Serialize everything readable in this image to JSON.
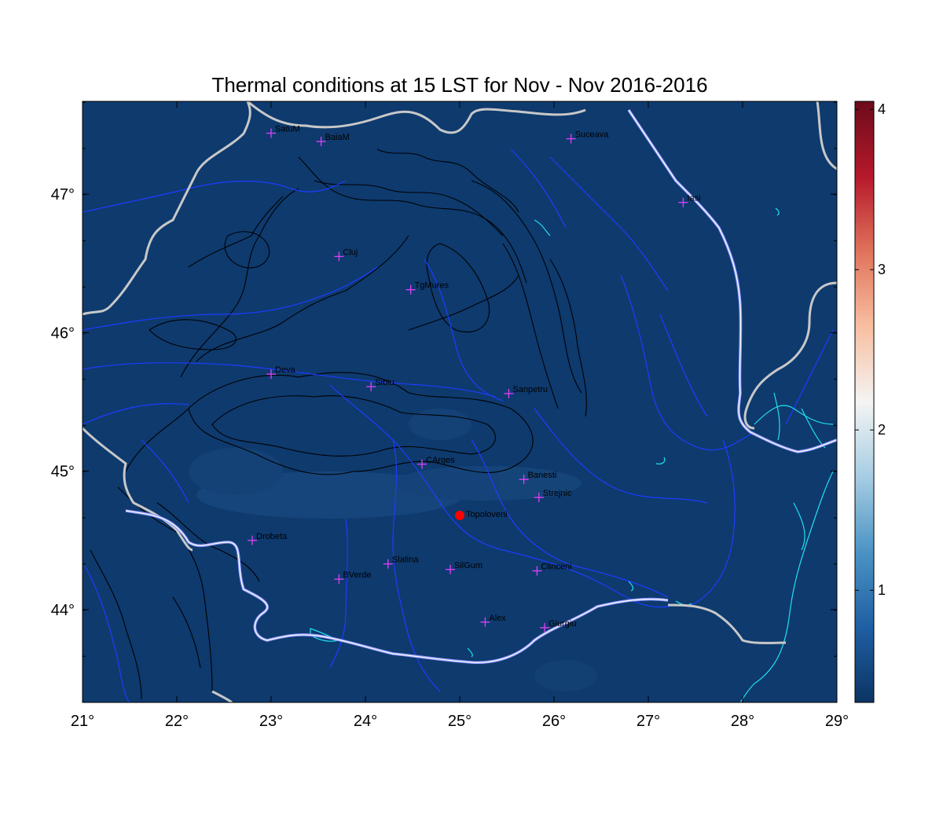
{
  "title": "Thermal conditions at 15 LST for Nov - Nov  2016-2016",
  "map": {
    "lon_range": [
      21,
      29
    ],
    "lat_range": [
      43.33,
      47.67
    ],
    "x_ticks": [
      21,
      22,
      23,
      24,
      25,
      26,
      27,
      28,
      29
    ],
    "y_ticks": [
      44,
      45,
      46,
      47
    ],
    "background_color": "#0e3a6e"
  },
  "colorbar": {
    "range": [
      0.3,
      4.05
    ],
    "ticks": [
      1,
      2,
      3,
      4
    ],
    "colors": [
      "#0b3463",
      "#1f5fa3",
      "#4b93c4",
      "#a6cde3",
      "#f4f4f4",
      "#f8bfa1",
      "#e0735b",
      "#b5192b",
      "#6c0b1b"
    ]
  },
  "stations": [
    {
      "name": "SatuM",
      "lon": 23.0,
      "lat": 47.44
    },
    {
      "name": "BaiaM",
      "lon": 23.53,
      "lat": 47.38
    },
    {
      "name": "Suceava",
      "lon": 26.18,
      "lat": 47.4
    },
    {
      "name": "Iasi",
      "lon": 27.37,
      "lat": 46.94
    },
    {
      "name": "Cluj",
      "lon": 23.72,
      "lat": 46.55
    },
    {
      "name": "TgMures",
      "lon": 24.48,
      "lat": 46.31
    },
    {
      "name": "Deva",
      "lon": 23.0,
      "lat": 45.7
    },
    {
      "name": "Sibiu",
      "lon": 24.06,
      "lat": 45.61
    },
    {
      "name": "Sanpetru",
      "lon": 25.52,
      "lat": 45.56
    },
    {
      "name": "CArges",
      "lon": 24.6,
      "lat": 45.05
    },
    {
      "name": "Banesti",
      "lon": 25.68,
      "lat": 44.94
    },
    {
      "name": "Strejnic",
      "lon": 25.84,
      "lat": 44.81
    },
    {
      "name": "Drobeta",
      "lon": 22.8,
      "lat": 44.5
    },
    {
      "name": "Slatina",
      "lon": 24.24,
      "lat": 44.33
    },
    {
      "name": "SilGum",
      "lon": 24.9,
      "lat": 44.29
    },
    {
      "name": "Clinceni",
      "lon": 25.82,
      "lat": 44.28
    },
    {
      "name": "BVerde",
      "lon": 23.72,
      "lat": 44.22
    },
    {
      "name": "Alex",
      "lon": 25.27,
      "lat": 43.91
    },
    {
      "name": "Giurgiu",
      "lon": 25.9,
      "lat": 43.87
    }
  ],
  "highlight": {
    "name": "Topoloveni",
    "lon": 25.0,
    "lat": 44.68,
    "color": "#ff0000"
  }
}
